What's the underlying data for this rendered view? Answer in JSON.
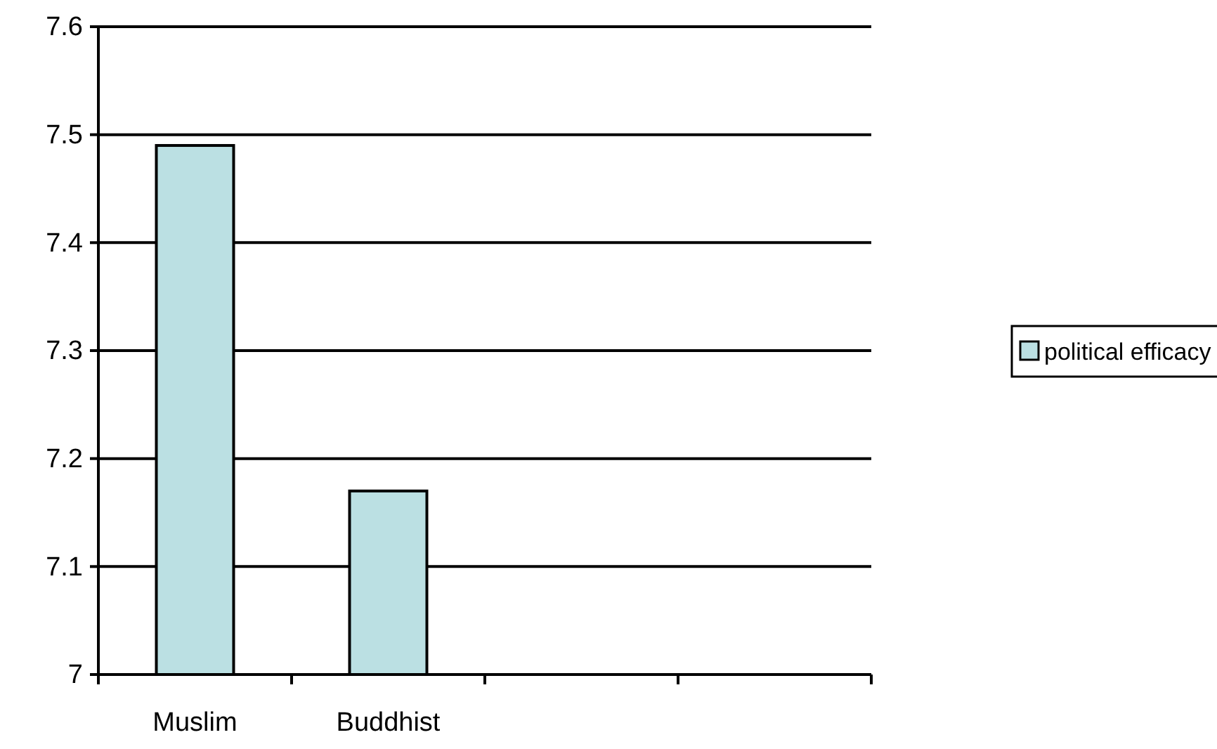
{
  "chart_data": {
    "type": "bar",
    "categories": [
      "Muslim",
      "Buddhist",
      null,
      null
    ],
    "series": [
      {
        "name": "political efficacy",
        "color": "#bbe0e3",
        "values": [
          7.49,
          7.17,
          null,
          null
        ]
      }
    ],
    "ylim": [
      7,
      7.6
    ],
    "yticks": [
      7,
      7.1,
      7.2,
      7.3,
      7.4,
      7.5,
      7.6
    ],
    "grid": "y",
    "legend": "right"
  }
}
